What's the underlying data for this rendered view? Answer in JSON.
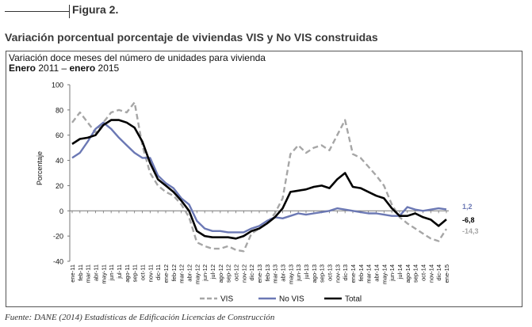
{
  "figure_label": "Figura 2.",
  "main_title": "Variación porcentual porcentaje de viviendas VIS y No VIS construidas",
  "source": "Fuente: DANE (2014) Estadísticas de Edificación Licencias de Construcción",
  "chart_data": {
    "type": "line",
    "title": "Variación doce meses del número de unidades para vivienda",
    "subtitle": {
      "part1": "Enero",
      "part2": " 2011 – ",
      "part3": "enero",
      "part4": " 2015"
    },
    "xlabel": "",
    "ylabel": "Porcentaje",
    "ylim": [
      -40,
      100
    ],
    "yticks": [
      "100",
      "80",
      "60",
      "40",
      "20",
      "0",
      "-20",
      "-40"
    ],
    "grid": false,
    "legend_position": "bottom",
    "categories": [
      "ene-11",
      "feb-11",
      "mar-11",
      "abr-11",
      "may-11",
      "jun-11",
      "jul-11",
      "ago-11",
      "sep-11",
      "oct-11",
      "nov-11",
      "dic-11",
      "ene-12",
      "feb-12",
      "mar-12",
      "abr-12",
      "may-12",
      "jun-12",
      "jul-12",
      "ago-12",
      "sep-12",
      "oct-12",
      "nov-12",
      "dic-12",
      "ene-13",
      "feb-13",
      "mar-13",
      "abr-13",
      "may-13",
      "jun-13",
      "jul-13",
      "ago-13",
      "sep-13",
      "oct-13",
      "nov-13",
      "dic-13",
      "ene-14",
      "feb-14",
      "mar-14",
      "abr-14",
      "may-14",
      "jun-14",
      "jul-14",
      "ago-14",
      "sep-14",
      "oct-14",
      "nov-14",
      "dic-14",
      "ene-15"
    ],
    "series": [
      {
        "name": "VIS",
        "color": "#a6a6a6",
        "dash": true,
        "values": [
          70,
          78,
          70,
          62,
          70,
          78,
          80,
          78,
          86,
          52,
          30,
          20,
          15,
          12,
          5,
          -5,
          -25,
          -28,
          -30,
          -30,
          -28,
          -31,
          -32,
          -18,
          -14,
          -10,
          -2,
          10,
          45,
          52,
          46,
          50,
          52,
          48,
          60,
          72,
          45,
          42,
          35,
          28,
          20,
          5,
          -5,
          -10,
          -14,
          -18,
          -22,
          -24,
          -14.3
        ],
        "end_label": "-14,3"
      },
      {
        "name": "No VIS",
        "color": "#6b78b4",
        "dash": false,
        "values": [
          42,
          46,
          55,
          65,
          70,
          65,
          58,
          52,
          46,
          42,
          42,
          28,
          22,
          18,
          10,
          5,
          -8,
          -14,
          -16,
          -16,
          -17,
          -17,
          -17,
          -14,
          -12,
          -8,
          -5,
          -6,
          -4,
          -2,
          -3,
          -2,
          -1,
          0,
          2,
          1,
          0,
          -1,
          -2,
          -2,
          -3,
          -4,
          -4,
          3,
          1,
          0,
          1,
          2,
          1.2
        ],
        "end_label": "1,2"
      },
      {
        "name": "Total",
        "color": "#000000",
        "dash": false,
        "values": [
          53,
          57,
          58,
          60,
          68,
          72,
          72,
          70,
          66,
          55,
          38,
          25,
          20,
          15,
          8,
          0,
          -16,
          -20,
          -21,
          -21,
          -21,
          -22,
          -20,
          -16,
          -14,
          -10,
          -5,
          2,
          15,
          16,
          17,
          19,
          20,
          18,
          25,
          30,
          19,
          18,
          15,
          12,
          10,
          2,
          -4,
          -4,
          -2,
          -5,
          -7,
          -12,
          -6.8
        ],
        "end_label": "-6,8"
      }
    ]
  }
}
